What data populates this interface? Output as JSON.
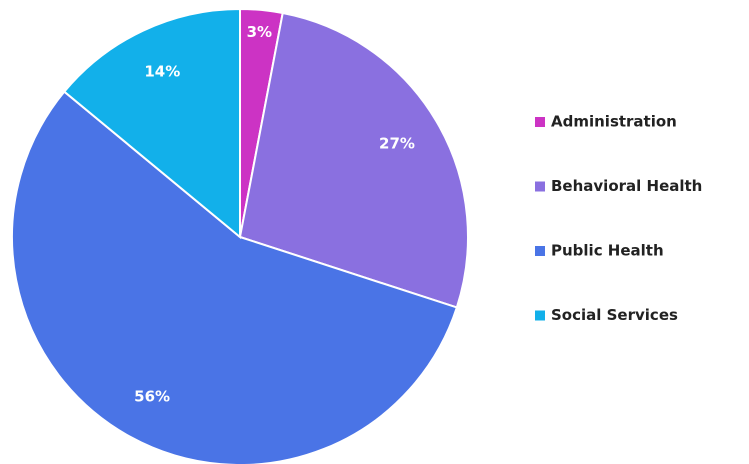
{
  "chart_data": {
    "type": "pie",
    "categories": [
      "Administration",
      "Behavioral Health",
      "Public Health",
      "Social Services"
    ],
    "values": [
      3,
      27,
      56,
      14
    ],
    "value_labels": [
      "3%",
      "27%",
      "56%",
      "14%"
    ],
    "colors": [
      "#cc33c4",
      "#8a70e0",
      "#4a74e6",
      "#12b0ea"
    ],
    "legend": "right"
  }
}
